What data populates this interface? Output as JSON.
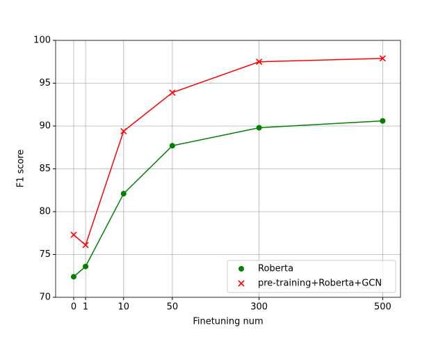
{
  "chart_data": {
    "type": "line",
    "xlabel": "Finetuning num",
    "ylabel": "F1 score",
    "x": [
      0,
      1,
      4.2,
      8.3,
      15.6,
      26
    ],
    "xlim": [
      -1.52,
      27.5
    ],
    "xticks": [
      {
        "value": 0,
        "label": "0"
      },
      {
        "value": 1,
        "label": "1"
      },
      {
        "value": 4.2,
        "label": "10"
      },
      {
        "value": 8.3,
        "label": "50"
      },
      {
        "value": 15.6,
        "label": "300"
      },
      {
        "value": 26,
        "label": "500"
      }
    ],
    "ylim": [
      70,
      100
    ],
    "yticks": [
      70,
      75,
      80,
      85,
      90,
      95,
      100
    ],
    "grid": true,
    "legend": "lower right",
    "series": [
      {
        "name": "Roberta",
        "color": "#008000",
        "marker": "circle",
        "values": [
          72.4,
          73.6,
          82.1,
          87.7,
          89.8,
          90.6
        ]
      },
      {
        "name": "pre-training+Roberta+GCN",
        "color": "#ff0000",
        "marker": "x",
        "values": [
          77.3,
          76.1,
          89.4,
          93.9,
          97.5,
          97.9
        ]
      }
    ]
  }
}
